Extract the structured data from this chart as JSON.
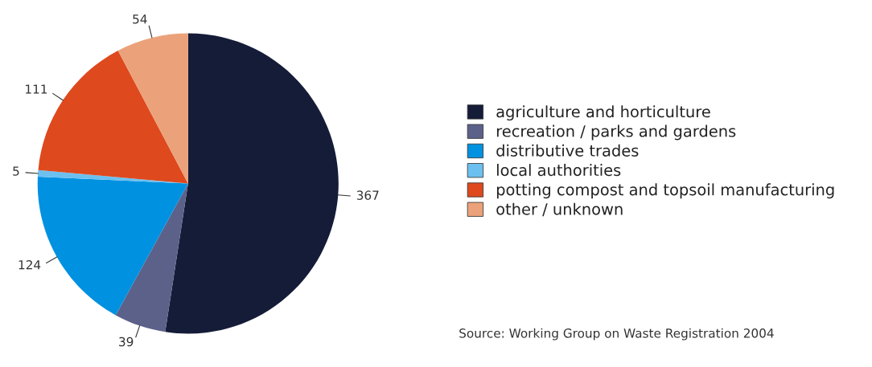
{
  "chart_data": {
    "type": "pie",
    "categories": [
      "agriculture and horticulture",
      "recreation / parks and gardens",
      "distributive trades",
      "local authorities",
      "potting compost and topsoil manufacturing",
      "other / unknown"
    ],
    "values": [
      367,
      39,
      124,
      5,
      111,
      54
    ],
    "colors": [
      "#141c38",
      "#5c618a",
      "#0091e0",
      "#6cc0ef",
      "#de491e",
      "#eba27a"
    ],
    "data_labels": true,
    "legend": "right",
    "annotations": [
      "Source: Working Group on Waste Registration 2004"
    ]
  }
}
